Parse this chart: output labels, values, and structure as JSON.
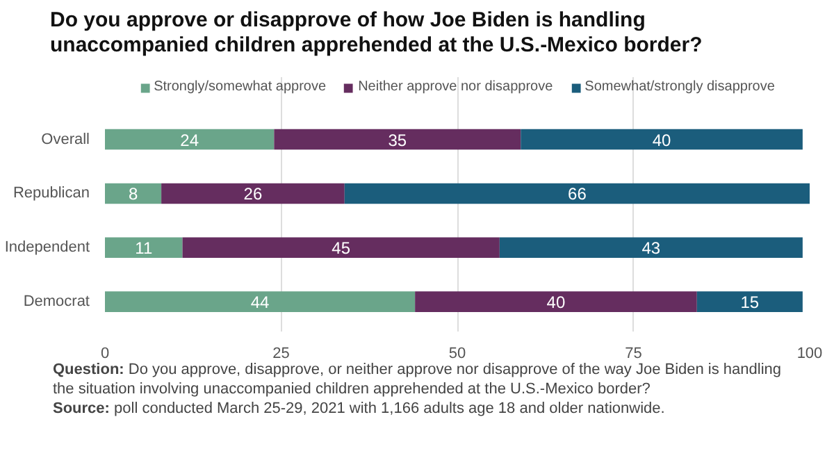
{
  "chart_data": {
    "type": "bar",
    "orientation": "horizontal",
    "stacked": true,
    "title": "Do you approve or disapprove of how Joe Biden is handling unaccompanied children apprehended at the U.S.-Mexico border?",
    "categories": [
      "Overall",
      "Republican",
      "Independent",
      "Democrat"
    ],
    "series": [
      {
        "name": "Strongly/somewhat approve",
        "color": "#6aa58a",
        "values": [
          24,
          8,
          11,
          44
        ]
      },
      {
        "name": "Neither approve nor disapprove",
        "color": "#652d5f",
        "values": [
          35,
          26,
          45,
          40
        ]
      },
      {
        "name": "Somewhat/strongly disapprove",
        "color": "#1b5d7c",
        "values": [
          40,
          66,
          43,
          15
        ]
      }
    ],
    "xlim": [
      0,
      100
    ],
    "xticks": [
      0,
      25,
      50,
      75,
      100
    ],
    "grid": "x",
    "legend": "top",
    "data_labels": true,
    "annotations": [
      "Question: Do you approve, disapprove, or neither approve nor disapprove of the way Joe Biden is handling the situation involving unaccompanied children apprehended at the U.S.-Mexico border?",
      "Source: poll conducted March 25-29, 2021 with 1,166 adults age 18 and older nationwide."
    ]
  }
}
